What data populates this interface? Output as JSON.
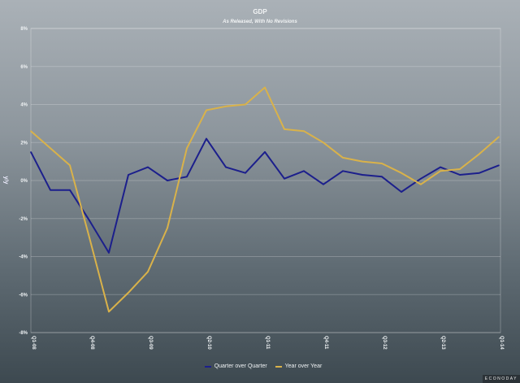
{
  "chart_data": {
    "type": "line",
    "title": "GDP",
    "subtitle": "As Released, With No Revisions",
    "ylabel": "y/y",
    "xlabel": "",
    "ylim": [
      -8,
      8
    ],
    "yticks": [
      -8,
      -6,
      -4,
      -2,
      0,
      2,
      4,
      6,
      8
    ],
    "ytick_labels": [
      "-8%",
      "-6%",
      "-4%",
      "-2%",
      "0%",
      "2%",
      "4%",
      "6%",
      "8%"
    ],
    "grid": true,
    "legend_placement": "bottom-center",
    "x": [
      "Q1-08",
      "Q2-08",
      "Q3-08",
      "Q4-08",
      "Q1-09",
      "Q2-09",
      "Q3-09",
      "Q4-09",
      "Q1-10",
      "Q2-10",
      "Q3-10",
      "Q4-10",
      "Q1-11",
      "Q2-11",
      "Q3-11",
      "Q4-11",
      "Q1-12",
      "Q2-12",
      "Q3-12",
      "Q4-12",
      "Q1-13",
      "Q2-13",
      "Q3-13",
      "Q4-13",
      "Q1-14"
    ],
    "xtick_labels": [
      "Q1-08",
      "Q4-08",
      "Q3-09",
      "Q2-10",
      "Q1-11",
      "Q4-11",
      "Q3-12",
      "Q2-13",
      "Q1-14"
    ],
    "series": [
      {
        "name": "Quarter over Quarter",
        "color": "#1c1f8c",
        "values": [
          1.5,
          -0.5,
          -0.5,
          -2.1,
          -3.8,
          0.3,
          0.7,
          0.0,
          0.2,
          2.2,
          0.7,
          0.4,
          1.5,
          0.1,
          0.5,
          -0.2,
          0.5,
          0.3,
          0.2,
          -0.6,
          0.1,
          0.7,
          0.3,
          0.4,
          0.8
        ]
      },
      {
        "name": "Year over Year",
        "color": "#d9b24a",
        "values": [
          2.6,
          1.7,
          0.8,
          -3.0,
          -6.9,
          -5.9,
          -4.8,
          -2.5,
          1.7,
          3.7,
          3.9,
          4.0,
          4.9,
          2.7,
          2.6,
          2.0,
          1.2,
          1.0,
          0.9,
          0.4,
          -0.2,
          0.5,
          0.6,
          1.4,
          2.3
        ]
      }
    ]
  },
  "branding": "ECONODAY"
}
